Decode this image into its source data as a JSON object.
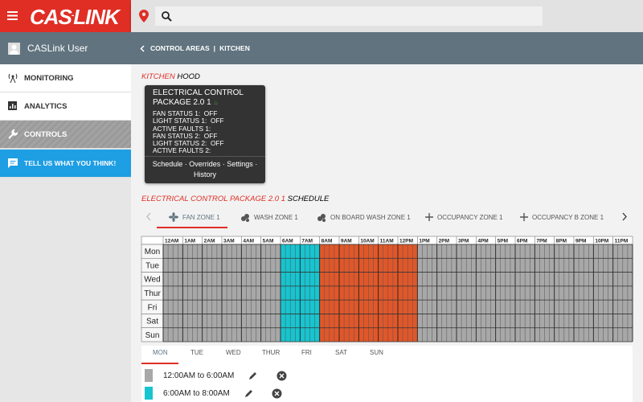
{
  "logo": {
    "left": "CAS",
    "right": "LINK"
  },
  "sidebar": {
    "user": "CASLink User",
    "menu": [
      "MONITORING",
      "ANALYTICS",
      "CONTROLS",
      "TELL US WHAT YOU THINK!"
    ]
  },
  "breadcrumb": [
    "CONTROL AREAS",
    "KITCHEN"
  ],
  "area": {
    "name": "KITCHEN",
    "label": "HOOD"
  },
  "card": {
    "title": "ELECTRICAL CONTROL PACKAGE 2.0 1",
    "status": [
      {
        "label": "FAN STATUS 1:",
        "value": "OFF"
      },
      {
        "label": "LIGHT STATUS 1:",
        "value": "OFF"
      },
      {
        "label": "ACTIVE FAULTS 1:"
      },
      {
        "label": "FAN STATUS 2:",
        "value": "OFF"
      },
      {
        "label": "LIGHT STATUS 2:",
        "value": "OFF"
      },
      {
        "label": "ACTIVE FAULTS 2:"
      }
    ],
    "links": "Schedule · Overrides · Settings · History"
  },
  "schedule": {
    "package": "ELECTRICAL CONTROL PACKAGE 2.0 1",
    "label": "SCHEDULE",
    "zones": [
      "FAN ZONE 1",
      "WASH ZONE 1",
      "ON BOARD WASH ZONE 1",
      "OCCUPANCY ZONE 1",
      "OCCUPANCY B ZONE 1"
    ]
  },
  "grid": {
    "hours": [
      "12AM",
      "1AM",
      "2AM",
      "3AM",
      "4AM",
      "5AM",
      "6AM",
      "7AM",
      "8AM",
      "9AM",
      "10AM",
      "11AM",
      "12PM",
      "1PM",
      "2PM",
      "3PM",
      "4PM",
      "5PM",
      "6PM",
      "7PM",
      "8PM",
      "9PM",
      "10PM",
      "11PM"
    ],
    "days": [
      "Mon",
      "Tue",
      "Wed",
      "Thur",
      "Fri",
      "Sat",
      "Sun"
    ],
    "blocks": [
      {
        "start": 0,
        "end": 6,
        "color": "#a8a8a8"
      },
      {
        "start": 6,
        "end": 8,
        "color": "#17c4cf"
      },
      {
        "start": 8,
        "end": 13,
        "color": "#e0572a"
      },
      {
        "start": 13,
        "end": 24,
        "color": "#a8a8a8"
      }
    ]
  },
  "day_tabs": [
    "MON",
    "TUE",
    "WED",
    "THUR",
    "FRI",
    "SAT",
    "SUN"
  ],
  "entries": [
    {
      "text": "12:00AM to 6:00AM",
      "color": "#a8a8a8"
    },
    {
      "text": "6:00AM to 8:00AM",
      "color": "#17c4cf"
    }
  ]
}
